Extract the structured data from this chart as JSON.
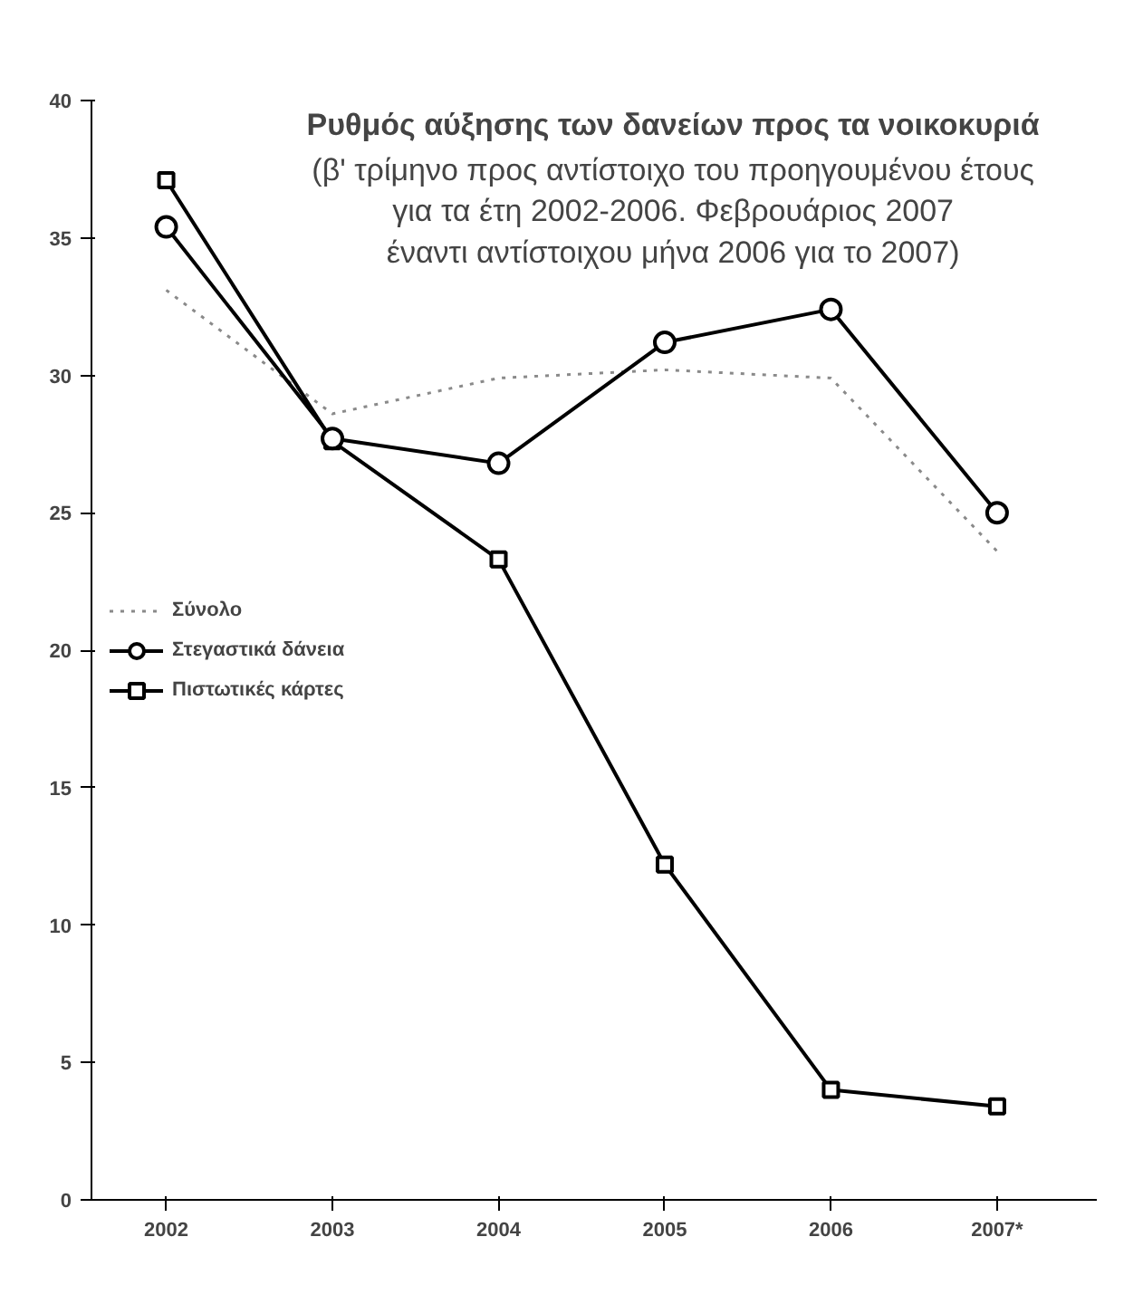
{
  "chart_data": {
    "type": "line",
    "title": "Ρυθμός αύξησης των δανείων προς τα νοικοκυριά",
    "subtitle": "(β' τρίμηνο προς αντίστοιχο του προηγουμένου έτους\nγια τα έτη 2002-2006. Φεβρουάριος 2007\nέναντι αντίστοιχου μήνα 2006 για το 2007)",
    "categories": [
      "2002",
      "2003",
      "2004",
      "2005",
      "2006",
      "2007*"
    ],
    "ylim": [
      0,
      40
    ],
    "yticks": [
      0,
      5,
      10,
      15,
      20,
      25,
      30,
      35,
      40
    ],
    "legend": "left",
    "series": [
      {
        "name": "Σύνολο",
        "color": "#8a8a8a",
        "line_style": "dotted",
        "marker": "none",
        "values": [
          33.1,
          28.6,
          29.9,
          30.2,
          29.9,
          23.6
        ]
      },
      {
        "name": "Στεγαστικά δάνεια",
        "color": "#000000",
        "line_style": "solid",
        "marker": "circle",
        "values": [
          35.4,
          27.7,
          26.8,
          31.2,
          32.4,
          25.0
        ]
      },
      {
        "name": "Πιστωτικές κάρτες",
        "color": "#000000",
        "line_style": "solid",
        "marker": "square",
        "values": [
          37.1,
          27.6,
          23.3,
          12.2,
          4.0,
          3.4
        ]
      }
    ]
  }
}
